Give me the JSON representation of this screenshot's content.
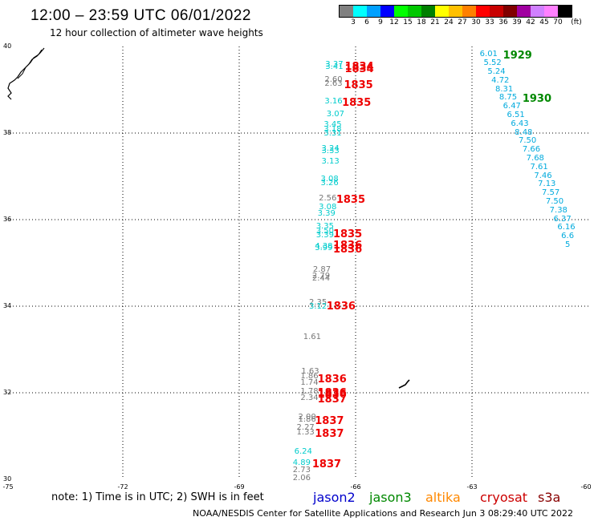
{
  "title": "12:00 – 23:59 UTC 06/01/2022",
  "subtitle": "12 hour collection of altimeter wave heights",
  "colorbar": {
    "unit_label": "(ft)",
    "labels": [
      "3",
      "6",
      "9",
      "12",
      "15",
      "18",
      "21",
      "24",
      "27",
      "30",
      "33",
      "36",
      "39",
      "42",
      "45",
      "70"
    ],
    "colors": [
      "#808080",
      "#00ffff",
      "#00a0ff",
      "#0000ff",
      "#00ff00",
      "#00c800",
      "#008000",
      "#ffff00",
      "#ffc000",
      "#ff8000",
      "#ff0000",
      "#c80000",
      "#800000",
      "#a000a0",
      "#d080ff",
      "#ff80ff",
      "#000000"
    ]
  },
  "axes": {
    "lat_labels": [
      "40",
      "38",
      "36",
      "34",
      "32",
      "30"
    ],
    "lon_labels": [
      "-75",
      "-72",
      "-69",
      "-66",
      "-63",
      "-60"
    ],
    "lat_range": [
      30,
      40
    ],
    "lon_range": [
      -75,
      -60
    ],
    "grid": "dotted"
  },
  "track_left": {
    "swh": [
      {
        "v": "3.37",
        "c": "#00cccc",
        "lat": 39.67,
        "lon": -66.78
      },
      {
        "v": "3.41",
        "c": "#00cccc",
        "lat": 39.62,
        "lon": -66.78
      },
      {
        "v": "2.60",
        "c": "#777777",
        "lat": 39.32,
        "lon": -66.8
      },
      {
        "v": "2.63",
        "c": "#777777",
        "lat": 39.22,
        "lon": -66.8
      },
      {
        "v": "3.16",
        "c": "#00cccc",
        "lat": 38.82,
        "lon": -66.8
      },
      {
        "v": "3.07",
        "c": "#00cccc",
        "lat": 38.52,
        "lon": -66.75
      },
      {
        "v": "3.45",
        "c": "#00cccc",
        "lat": 38.27,
        "lon": -66.82
      },
      {
        "v": "3.18",
        "c": "#00cccc",
        "lat": 38.17,
        "lon": -66.82
      },
      {
        "v": "3.31",
        "c": "#00cccc",
        "lat": 38.07,
        "lon": -66.82
      },
      {
        "v": "3.24",
        "c": "#00cccc",
        "lat": 37.72,
        "lon": -66.88
      },
      {
        "v": "3.33",
        "c": "#00cccc",
        "lat": 37.67,
        "lon": -66.88
      },
      {
        "v": "3.13",
        "c": "#00cccc",
        "lat": 37.42,
        "lon": -66.88
      },
      {
        "v": "3.08",
        "c": "#00cccc",
        "lat": 37.02,
        "lon": -66.9
      },
      {
        "v": "3.26",
        "c": "#00cccc",
        "lat": 36.92,
        "lon": -66.9
      },
      {
        "v": "2.56",
        "c": "#777777",
        "lat": 36.57,
        "lon": -66.95
      },
      {
        "v": "3.08",
        "c": "#00cccc",
        "lat": 36.37,
        "lon": -66.95
      },
      {
        "v": "3.39",
        "c": "#00cccc",
        "lat": 36.22,
        "lon": -66.98
      },
      {
        "v": "3.35",
        "c": "#00cccc",
        "lat": 35.92,
        "lon": -67.02
      },
      {
        "v": "3.50",
        "c": "#00cccc",
        "lat": 35.82,
        "lon": -67.02
      },
      {
        "v": "3.39",
        "c": "#00cccc",
        "lat": 35.72,
        "lon": -67.02
      },
      {
        "v": "4.38",
        "c": "#00cccc",
        "lat": 35.47,
        "lon": -67.05
      },
      {
        "v": "3.99",
        "c": "#00cccc",
        "lat": 35.42,
        "lon": -67.05
      },
      {
        "v": "2.87",
        "c": "#777777",
        "lat": 34.92,
        "lon": -67.1
      },
      {
        "v": "2.79",
        "c": "#777777",
        "lat": 34.77,
        "lon": -67.12
      },
      {
        "v": "2.44",
        "c": "#777777",
        "lat": 34.72,
        "lon": -67.12
      },
      {
        "v": "2.35",
        "c": "#777777",
        "lat": 34.17,
        "lon": -67.2
      },
      {
        "v": "3.12",
        "c": "#00cccc",
        "lat": 34.07,
        "lon": -67.2
      },
      {
        "v": "1.61",
        "c": "#777777",
        "lat": 33.37,
        "lon": -67.35
      },
      {
        "v": "1.63",
        "c": "#777777",
        "lat": 32.57,
        "lon": -67.4
      },
      {
        "v": "1.86",
        "c": "#777777",
        "lat": 32.47,
        "lon": -67.42
      },
      {
        "v": "1.74",
        "c": "#777777",
        "lat": 32.32,
        "lon": -67.42
      },
      {
        "v": "1.78",
        "c": "#777777",
        "lat": 32.12,
        "lon": -67.42
      },
      {
        "v": "2.34",
        "c": "#777777",
        "lat": 31.97,
        "lon": -67.42
      },
      {
        "v": "2.00",
        "c": "#777777",
        "lat": 31.52,
        "lon": -67.48
      },
      {
        "v": "1.86",
        "c": "#777777",
        "lat": 31.47,
        "lon": -67.48
      },
      {
        "v": "2.27",
        "c": "#777777",
        "lat": 31.27,
        "lon": -67.52
      },
      {
        "v": "1.33",
        "c": "#777777",
        "lat": 31.17,
        "lon": -67.52
      },
      {
        "v": "6.24",
        "c": "#00cccc",
        "lat": 30.72,
        "lon": -67.58
      },
      {
        "v": "4.89",
        "c": "#00cccc",
        "lat": 30.47,
        "lon": -67.62
      },
      {
        "v": "2.73",
        "c": "#777777",
        "lat": 30.3,
        "lon": -67.62
      },
      {
        "v": "2.06",
        "c": "#777777",
        "lat": 30.12,
        "lon": -67.62
      }
    ],
    "times": [
      {
        "v": "1834",
        "lat": 39.65,
        "lon": -66.28
      },
      {
        "v": "1834",
        "lat": 39.6,
        "lon": -66.28
      },
      {
        "v": "1835",
        "lat": 39.22,
        "lon": -66.3
      },
      {
        "v": "1835",
        "lat": 38.82,
        "lon": -66.35
      },
      {
        "v": "1835",
        "lat": 36.57,
        "lon": -66.5
      },
      {
        "v": "1835",
        "lat": 35.77,
        "lon": -66.58
      },
      {
        "v": "1836",
        "lat": 35.52,
        "lon": -66.58
      },
      {
        "v": "1836",
        "lat": 35.42,
        "lon": -66.58
      },
      {
        "v": "1836",
        "lat": 34.12,
        "lon": -66.75
      },
      {
        "v": "1836",
        "lat": 32.42,
        "lon": -66.98
      },
      {
        "v": "1836",
        "lat": 32.12,
        "lon": -66.98
      },
      {
        "v": "1836",
        "lat": 32.07,
        "lon": -66.98
      },
      {
        "v": "1837",
        "lat": 31.97,
        "lon": -66.98
      },
      {
        "v": "1837",
        "lat": 31.47,
        "lon": -67.05
      },
      {
        "v": "1837",
        "lat": 31.17,
        "lon": -67.05
      },
      {
        "v": "1837",
        "lat": 30.47,
        "lon": -67.12
      }
    ]
  },
  "track_right": {
    "swh": [
      {
        "v": "6.01",
        "c": "#00aadd",
        "lat": 39.9,
        "lon": -62.8
      },
      {
        "v": "5.52",
        "c": "#00aadd",
        "lat": 39.7,
        "lon": -62.7
      },
      {
        "v": "5.24",
        "c": "#00aadd",
        "lat": 39.5,
        "lon": -62.6
      },
      {
        "v": "4.72",
        "c": "#00aadd",
        "lat": 39.3,
        "lon": -62.5
      },
      {
        "v": "8.31",
        "c": "#00aadd",
        "lat": 39.1,
        "lon": -62.4
      },
      {
        "v": "8.75",
        "c": "#00aadd",
        "lat": 38.9,
        "lon": -62.3
      },
      {
        "v": "6.47",
        "c": "#00aadd",
        "lat": 38.7,
        "lon": -62.2
      },
      {
        "v": "6.51",
        "c": "#00aadd",
        "lat": 38.5,
        "lon": -62.1
      },
      {
        "v": "6.43",
        "c": "#00aadd",
        "lat": 38.3,
        "lon": -62.0
      },
      {
        "v": "8.48",
        "c": "#00aadd",
        "lat": 38.1,
        "lon": -61.9
      },
      {
        "v": "7.50",
        "c": "#00aadd",
        "lat": 37.9,
        "lon": -61.8
      },
      {
        "v": "7.66",
        "c": "#00aadd",
        "lat": 37.7,
        "lon": -61.7
      },
      {
        "v": "7.68",
        "c": "#00aadd",
        "lat": 37.5,
        "lon": -61.6
      },
      {
        "v": "7.61",
        "c": "#00aadd",
        "lat": 37.3,
        "lon": -61.5
      },
      {
        "v": "7.46",
        "c": "#00aadd",
        "lat": 37.1,
        "lon": -61.4
      },
      {
        "v": "7.13",
        "c": "#00aadd",
        "lat": 36.9,
        "lon": -61.3
      },
      {
        "v": "7.57",
        "c": "#00aadd",
        "lat": 36.7,
        "lon": -61.2
      },
      {
        "v": "7.50",
        "c": "#00aadd",
        "lat": 36.5,
        "lon": -61.1
      },
      {
        "v": "7.38",
        "c": "#00aadd",
        "lat": 36.3,
        "lon": -61.0
      },
      {
        "v": "6.37",
        "c": "#00aadd",
        "lat": 36.1,
        "lon": -60.9
      },
      {
        "v": "6.16",
        "c": "#00aadd",
        "lat": 35.9,
        "lon": -60.8
      },
      {
        "v": "6.6",
        "c": "#00aadd",
        "lat": 35.7,
        "lon": -60.7
      },
      {
        "v": "5",
        "c": "#00aadd",
        "lat": 35.5,
        "lon": -60.6
      }
    ],
    "times": [
      {
        "v": "1929",
        "lat": 39.9,
        "lon": -62.2
      },
      {
        "v": "1930",
        "lat": 38.9,
        "lon": -61.7
      }
    ]
  },
  "note": "note: 1) Time is in UTC; 2) SWH is in feet",
  "satellites": [
    {
      "name": "jason2",
      "color": "#0000cc"
    },
    {
      "name": "jason3",
      "color": "#008800"
    },
    {
      "name": "altika",
      "color": "#ff8800"
    },
    {
      "name": "cryosat",
      "color": "#cc0000"
    },
    {
      "name": "s3a",
      "color": "#880000"
    }
  ],
  "credit": "NOAA/NESDIS Center for Satellite Applications and Research   Jun  3 08:29:40 UTC 2022"
}
